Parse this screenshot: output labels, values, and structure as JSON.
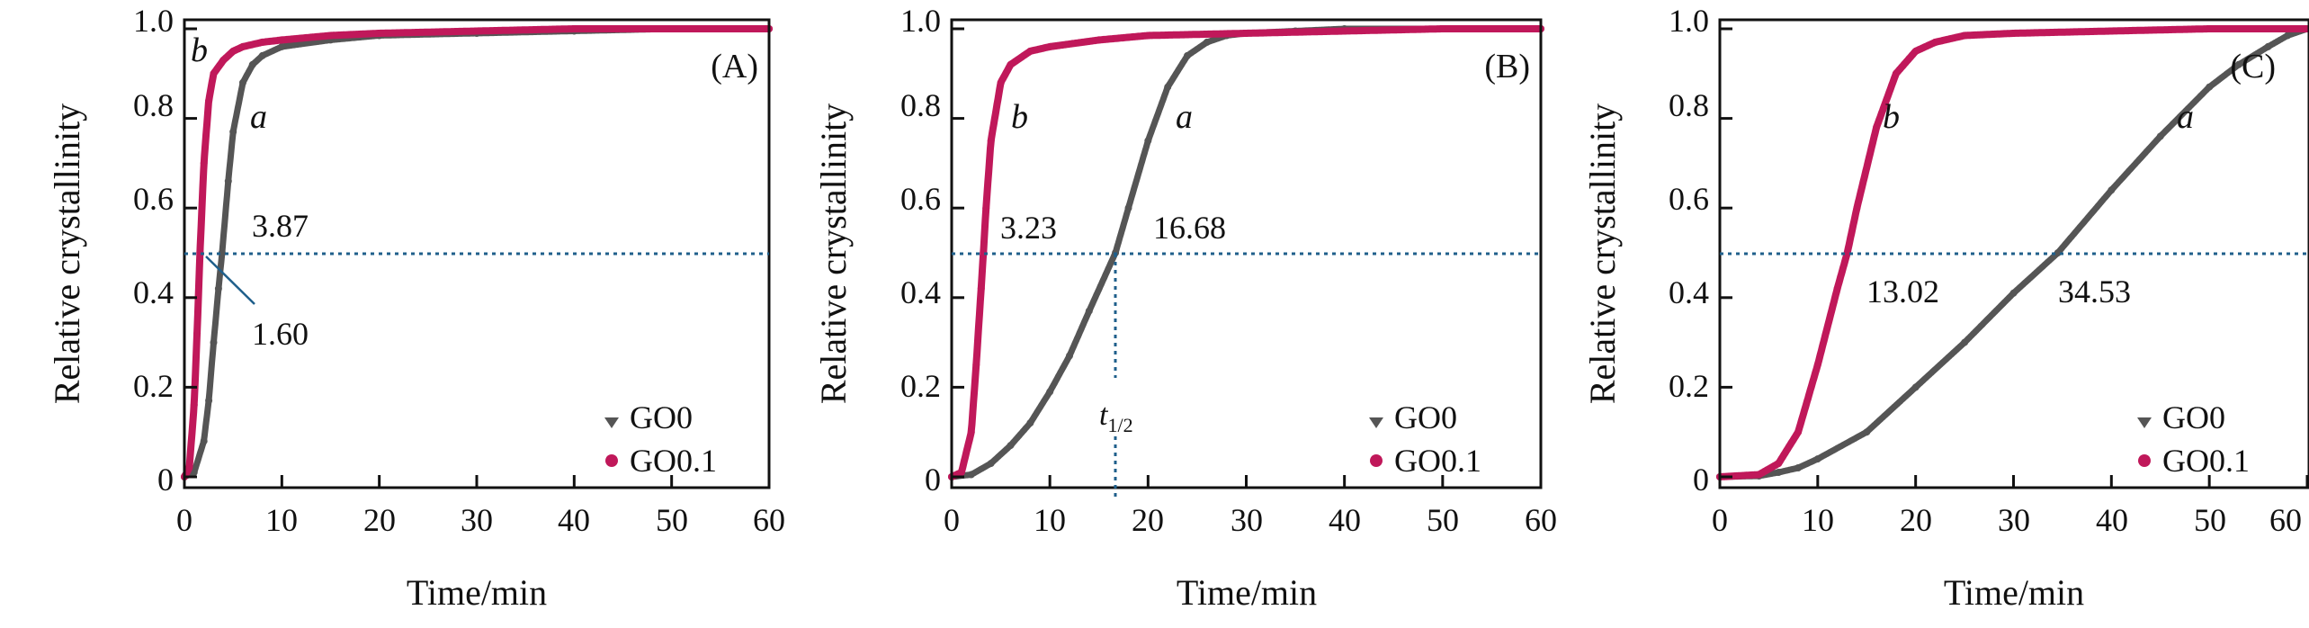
{
  "colors": {
    "GO0": "#555555",
    "GO0.1": "#c0185a",
    "ref_line": "#1f5f8b",
    "axis": "#111111"
  },
  "chart_data": [
    {
      "type": "scatter",
      "panel": "(A)",
      "xlabel": "Time/min",
      "ylabel": "Relative crystallinity",
      "xlim": [
        0,
        60
      ],
      "ylim": [
        0,
        1.0
      ],
      "xticks": [
        "0",
        "10",
        "20",
        "30",
        "40",
        "50",
        "60"
      ],
      "yticks": [
        "0",
        "0.2",
        "0.4",
        "0.6",
        "0.8",
        "1.0"
      ],
      "grid": false,
      "legend_position": "bottom-right",
      "reference_line_y": 0.5,
      "series": [
        {
          "name": "GO0",
          "curve_label": "a",
          "half_time": 3.87,
          "x": [
            0,
            1,
            2,
            2.5,
            3,
            3.5,
            3.87,
            4.5,
            5,
            6,
            7,
            8,
            10,
            15,
            20,
            30,
            40,
            50,
            60
          ],
          "y": [
            0,
            0.01,
            0.08,
            0.17,
            0.3,
            0.42,
            0.5,
            0.66,
            0.77,
            0.88,
            0.92,
            0.94,
            0.96,
            0.975,
            0.985,
            0.99,
            0.995,
            1.0,
            1.0
          ]
        },
        {
          "name": "GO0.1",
          "curve_label": "b",
          "half_time": 1.6,
          "x": [
            0,
            0.5,
            1,
            1.3,
            1.6,
            2,
            2.5,
            3,
            4,
            5,
            6,
            8,
            10,
            15,
            20,
            30,
            40,
            50,
            60
          ],
          "y": [
            0,
            0.02,
            0.16,
            0.32,
            0.5,
            0.7,
            0.84,
            0.9,
            0.93,
            0.95,
            0.96,
            0.97,
            0.975,
            0.985,
            0.99,
            0.995,
            1.0,
            1.0,
            1.0
          ]
        }
      ],
      "annotations": [
        "3.87",
        "1.60"
      ]
    },
    {
      "type": "scatter",
      "panel": "(B)",
      "xlabel": "Time/min",
      "ylabel": "Relative crystallinity",
      "xlim": [
        0,
        60
      ],
      "ylim": [
        0,
        1.0
      ],
      "xticks": [
        "0",
        "10",
        "20",
        "30",
        "40",
        "50",
        "60"
      ],
      "yticks": [
        "0",
        "0.2",
        "0.4",
        "0.6",
        "0.8",
        "1.0"
      ],
      "grid": false,
      "legend_position": "bottom-right",
      "reference_line_y": 0.5,
      "series": [
        {
          "name": "GO0",
          "curve_label": "a",
          "half_time": 16.68,
          "x": [
            0,
            2,
            4,
            6,
            8,
            10,
            12,
            14,
            16.68,
            18,
            20,
            22,
            24,
            26,
            28,
            30,
            35,
            40,
            50,
            60
          ],
          "y": [
            0,
            0.005,
            0.03,
            0.07,
            0.12,
            0.19,
            0.27,
            0.37,
            0.5,
            0.6,
            0.75,
            0.87,
            0.94,
            0.97,
            0.985,
            0.99,
            0.995,
            1.0,
            1.0,
            1.0
          ]
        },
        {
          "name": "GO0.1",
          "curve_label": "b",
          "half_time": 3.23,
          "x": [
            0,
            1,
            2,
            2.5,
            3,
            3.23,
            3.5,
            4,
            5,
            6,
            8,
            10,
            15,
            20,
            30,
            40,
            50,
            60
          ],
          "y": [
            0,
            0.01,
            0.1,
            0.25,
            0.42,
            0.5,
            0.6,
            0.75,
            0.88,
            0.92,
            0.95,
            0.96,
            0.975,
            0.985,
            0.99,
            0.995,
            1.0,
            1.0
          ]
        }
      ],
      "annotations": [
        "3.23",
        "16.68"
      ],
      "half_time_marker": {
        "main": "t",
        "subscript": "1/2",
        "x": 16.68
      }
    },
    {
      "type": "scatter",
      "panel": "(C)",
      "xlabel": "Time/min",
      "ylabel": "Relative crystallinity",
      "xlim": [
        0,
        60
      ],
      "ylim": [
        0,
        1.0
      ],
      "xticks": [
        "0",
        "10",
        "20",
        "30",
        "40",
        "50",
        "60"
      ],
      "yticks": [
        "0",
        "0.2",
        "0.4",
        "0.6",
        "0.8",
        "1.0"
      ],
      "grid": false,
      "legend_position": "bottom-right",
      "reference_line_y": 0.5,
      "series": [
        {
          "name": "GO0",
          "curve_label": "a",
          "half_time": 34.53,
          "x": [
            0,
            4,
            6,
            8,
            10,
            15,
            20,
            25,
            30,
            34.53,
            40,
            45,
            50,
            53,
            56,
            58,
            60
          ],
          "y": [
            0,
            0.002,
            0.01,
            0.02,
            0.04,
            0.1,
            0.2,
            0.3,
            0.41,
            0.5,
            0.64,
            0.76,
            0.87,
            0.92,
            0.96,
            0.985,
            1.0
          ]
        },
        {
          "name": "GO0.1",
          "curve_label": "b",
          "half_time": 13.02,
          "x": [
            0,
            4,
            6,
            8,
            10,
            12,
            13.02,
            14,
            16,
            18,
            20,
            22,
            25,
            30,
            40,
            50,
            60
          ],
          "y": [
            0,
            0.005,
            0.03,
            0.1,
            0.25,
            0.42,
            0.5,
            0.6,
            0.78,
            0.9,
            0.95,
            0.97,
            0.985,
            0.99,
            0.995,
            1.0,
            1.0
          ]
        }
      ],
      "annotations": [
        "13.02",
        "34.53"
      ]
    }
  ]
}
